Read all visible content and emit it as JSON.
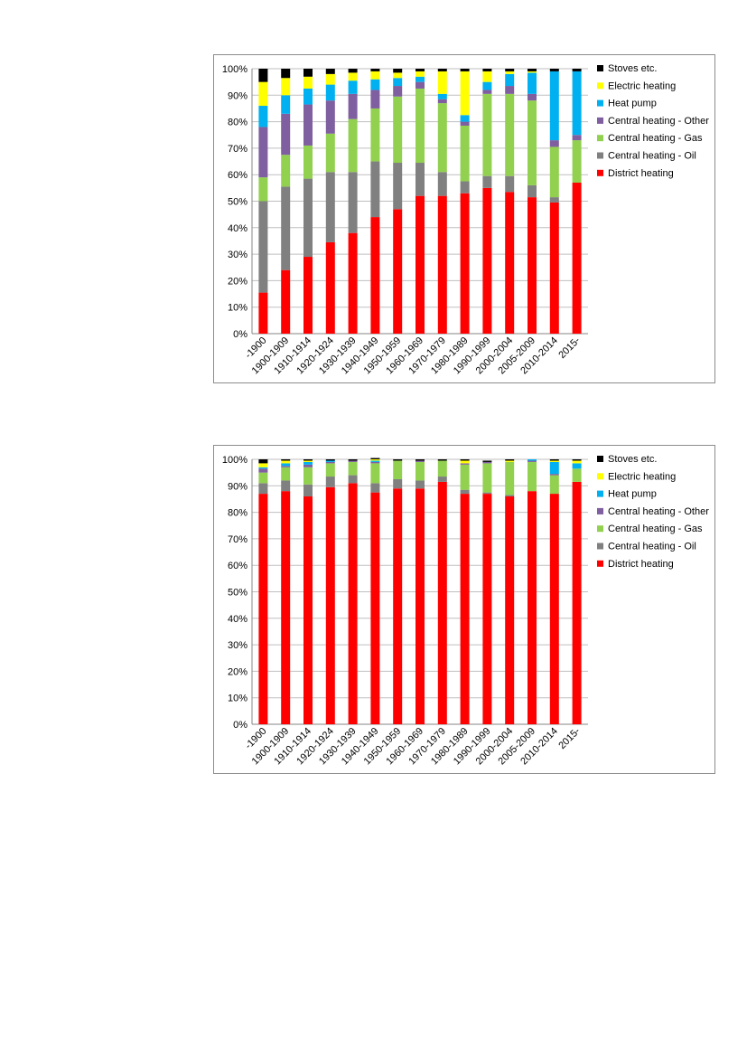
{
  "chart_data": [
    {
      "type": "bar",
      "stacked": true,
      "categories": [
        "-1900",
        "1900-1909",
        "1910-1914",
        "1920-1924",
        "1930-1939",
        "1940-1949",
        "1950-1959",
        "1960-1969",
        "1970-1979",
        "1980-1989",
        "1990-1999",
        "2000-2004",
        "2005-2009",
        "2010-2014",
        "2015-"
      ],
      "ylim": [
        0,
        100
      ],
      "yticks": [
        "0%",
        "10%",
        "20%",
        "30%",
        "40%",
        "50%",
        "60%",
        "70%",
        "80%",
        "90%",
        "100%"
      ],
      "legend_position": "right",
      "series": [
        {
          "name": "District heating",
          "color": "#ff0000",
          "values": [
            15.5,
            24,
            29,
            34.5,
            38,
            44,
            47,
            52,
            52,
            53,
            55,
            53.5,
            51.5,
            49.5,
            57
          ]
        },
        {
          "name": "Central heating - Oil",
          "color": "#808080",
          "values": [
            34.5,
            31.5,
            29.5,
            26.5,
            23,
            21,
            17.5,
            12.5,
            9,
            4.5,
            4.5,
            6,
            4.5,
            2,
            0
          ]
        },
        {
          "name": "Central heating - Gas",
          "color": "#92d050",
          "values": [
            9,
            12,
            12.5,
            14.5,
            20,
            20,
            25,
            28,
            26,
            21,
            31,
            31,
            32,
            19,
            16
          ]
        },
        {
          "name": "Central heating - Other",
          "color": "#7f5f9f",
          "values": [
            19,
            15.5,
            15.5,
            12.5,
            9.5,
            7,
            4,
            2.5,
            1.5,
            1.5,
            1.5,
            3,
            2.5,
            2.5,
            2
          ]
        },
        {
          "name": "Heat pump",
          "color": "#00b0f0",
          "values": [
            8,
            7,
            6,
            6,
            5,
            4,
            3,
            2,
            2,
            2.5,
            3,
            4.5,
            8,
            26,
            24
          ]
        },
        {
          "name": "Electric heating",
          "color": "#ffff00",
          "values": [
            9,
            6.5,
            4.5,
            4,
            3,
            3,
            2,
            2,
            8.5,
            16.5,
            4,
            1,
            0.5,
            0,
            0
          ]
        },
        {
          "name": "Stoves etc.",
          "color": "#000000",
          "values": [
            5,
            3.5,
            3,
            2,
            1.5,
            1,
            1.5,
            1,
            1,
            1,
            1,
            1,
            1,
            1,
            1
          ]
        }
      ]
    },
    {
      "type": "bar",
      "stacked": true,
      "categories": [
        "-1900",
        "1900-1909",
        "1910-1914",
        "1920-1924",
        "1930-1939",
        "1940-1949",
        "1950-1959",
        "1960-1969",
        "1970-1979",
        "1980-1989",
        "1990-1999",
        "2000-2004",
        "2005-2009",
        "2010-2014",
        "2015-"
      ],
      "ylim": [
        0,
        100
      ],
      "yticks": [
        "0%",
        "10%",
        "20%",
        "30%",
        "40%",
        "50%",
        "60%",
        "70%",
        "80%",
        "90%",
        "100%"
      ],
      "legend_position": "right",
      "series": [
        {
          "name": "District heating",
          "color": "#ff0000",
          "values": [
            87,
            88,
            86,
            89.5,
            91,
            87.5,
            89,
            89,
            91.5,
            87,
            87,
            86,
            88,
            87,
            91.5
          ]
        },
        {
          "name": "Central heating - Oil",
          "color": "#808080",
          "values": [
            4,
            4,
            4.5,
            4,
            3,
            3.5,
            3.5,
            3,
            2,
            1.5,
            0.5,
            0.5,
            0,
            0,
            0
          ]
        },
        {
          "name": "Central heating - Gas",
          "color": "#92d050",
          "values": [
            4,
            5,
            6.5,
            5,
            5,
            7.5,
            7,
            7,
            6,
            9.5,
            11,
            12.5,
            11,
            7,
            5
          ]
        },
        {
          "name": "Central heating - Other",
          "color": "#7f5f9f",
          "values": [
            1.5,
            0.5,
            1,
            0.5,
            0.5,
            0.5,
            0,
            0.5,
            0,
            0.5,
            0.5,
            0,
            0.5,
            0.5,
            0
          ]
        },
        {
          "name": "Heat pump",
          "color": "#00b0f0",
          "values": [
            0.5,
            1,
            1,
            0.5,
            0,
            0.5,
            0,
            0,
            0,
            0,
            0,
            0,
            0.5,
            4.5,
            2
          ]
        },
        {
          "name": "Electric heating",
          "color": "#ffff00",
          "values": [
            1.5,
            1,
            0.5,
            0,
            0,
            0.5,
            0,
            0,
            0,
            1,
            0,
            0.5,
            0,
            0.5,
            1
          ]
        },
        {
          "name": "Stoves etc.",
          "color": "#000000",
          "values": [
            1.5,
            0.5,
            0.5,
            0.5,
            0.5,
            0.5,
            0.5,
            0.5,
            0.5,
            0.5,
            0.5,
            0.5,
            0,
            0.5,
            0.5
          ]
        }
      ]
    }
  ]
}
